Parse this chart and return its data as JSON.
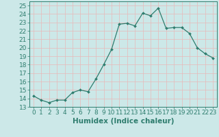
{
  "x": [
    0,
    1,
    2,
    3,
    4,
    5,
    6,
    7,
    8,
    9,
    10,
    11,
    12,
    13,
    14,
    15,
    16,
    17,
    18,
    19,
    20,
    21,
    22,
    23
  ],
  "y": [
    14.3,
    13.8,
    13.5,
    13.8,
    13.8,
    14.7,
    15.0,
    14.8,
    16.3,
    18.0,
    19.8,
    22.8,
    22.9,
    22.6,
    24.1,
    23.8,
    24.7,
    22.3,
    22.4,
    22.4,
    21.7,
    20.0,
    19.3,
    18.8
  ],
  "line_color": "#2e7d6e",
  "marker": "D",
  "marker_size": 2.0,
  "xlabel": "Humidex (Indice chaleur)",
  "xlim": [
    -0.5,
    23.5
  ],
  "ylim": [
    13,
    25.5
  ],
  "yticks": [
    13,
    14,
    15,
    16,
    17,
    18,
    19,
    20,
    21,
    22,
    23,
    24,
    25
  ],
  "xticks": [
    0,
    1,
    2,
    3,
    4,
    5,
    6,
    7,
    8,
    9,
    10,
    11,
    12,
    13,
    14,
    15,
    16,
    17,
    18,
    19,
    20,
    21,
    22,
    23
  ],
  "bg_color": "#cce8e8",
  "grid_color": "#e8b8b8",
  "font_color": "#2e7d6e",
  "tick_fontsize": 6.5,
  "xlabel_fontsize": 7.5
}
